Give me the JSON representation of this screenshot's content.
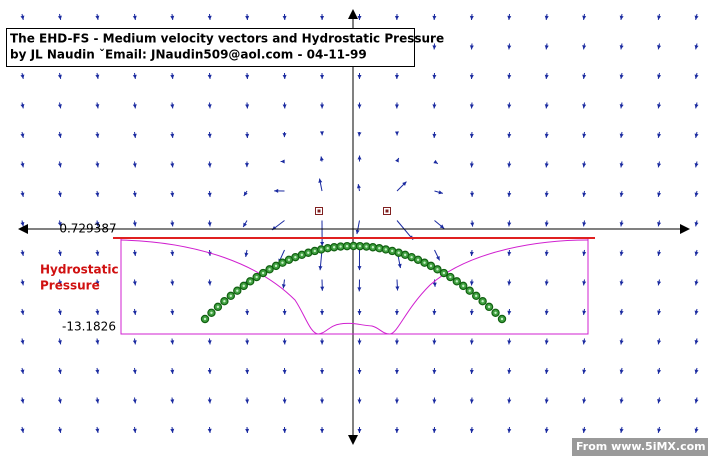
{
  "header": {
    "title": "The EHD-FS - Medium velocity vectors and Hydrostatic Pressure",
    "subtitle": "by JL Naudin ˇEmail: JNaudin509@aol.com - 04-11-99"
  },
  "scale": {
    "top": "-0.729387",
    "bottom": "-13.1826"
  },
  "legend": {
    "line1": "Hydrostatic",
    "line2": "Pressure"
  },
  "footer": "From www.5iMX.com"
}
